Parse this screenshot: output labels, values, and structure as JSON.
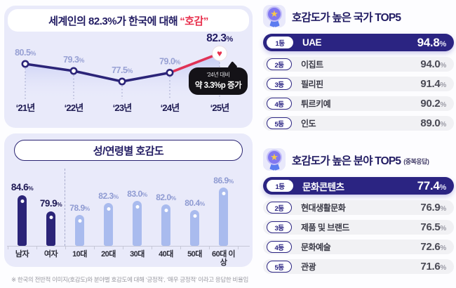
{
  "ui": {
    "percent": "%",
    "footnote": "※ 한국의 전반적 이미지(호감도)와 분야별 호감도에 대해 ‘긍정적’, ‘매우 긍정적’ 이라고 응답한 비율임"
  },
  "colors": {
    "navy": "#2b2478",
    "navy_text": "#221c63",
    "red": "#e8304d",
    "pink_line": "#e03256",
    "light_bar": "#a9bbee",
    "light_label": "#8f9bd2",
    "card_bg": "#e9eafa",
    "row_bg": "#f1f1f4",
    "row1_bg": "#2b2482"
  },
  "chart_data": [
    {
      "type": "line",
      "title_prefix": "세계인의 82.3%가 한국에 대해",
      "title_highlight": "“호감”",
      "x": [
        "‘21년",
        "‘22년",
        "‘23년",
        "‘24년",
        "‘25년"
      ],
      "values": [
        80.5,
        79.3,
        77.5,
        79.0,
        82.3
      ],
      "unit": "%",
      "ylim": [
        74,
        86
      ],
      "callout": {
        "line1": "‘24년 대비",
        "line2": "약 3.3%p 증가"
      },
      "highlight_last_marker": "heart"
    },
    {
      "type": "bar",
      "title": "성/연령별 호감도",
      "categories": [
        "남자",
        "여자",
        "10대",
        "20대",
        "30대",
        "40대",
        "50대",
        "60대 이상"
      ],
      "values": [
        84.6,
        79.9,
        78.9,
        82.3,
        83.0,
        82.0,
        80.4,
        86.9
      ],
      "unit": "%",
      "ylim": [
        70,
        90
      ],
      "emphasized_count": 2
    },
    {
      "type": "table",
      "title": "호감도가 높은 국가 TOP5",
      "rows": [
        {
          "rank": "1등",
          "label": "UAE",
          "value": "94.8"
        },
        {
          "rank": "2등",
          "label": "이집트",
          "value": "94.0"
        },
        {
          "rank": "3등",
          "label": "필리핀",
          "value": "91.4"
        },
        {
          "rank": "4등",
          "label": "튀르키예",
          "value": "90.2"
        },
        {
          "rank": "5등",
          "label": "인도",
          "value": "89.0"
        }
      ]
    },
    {
      "type": "table",
      "title": "호감도가 높은 분야 TOP5",
      "subtitle": "(중복응답)",
      "rows": [
        {
          "rank": "1등",
          "label": "문화콘텐츠",
          "value": "77.4"
        },
        {
          "rank": "2등",
          "label": "현대생활문화",
          "value": "76.9"
        },
        {
          "rank": "3등",
          "label": "제품 및 브랜드",
          "value": "76.5"
        },
        {
          "rank": "4등",
          "label": "문화예술",
          "value": "72.6"
        },
        {
          "rank": "5등",
          "label": "관광",
          "value": "71.6"
        }
      ]
    }
  ]
}
